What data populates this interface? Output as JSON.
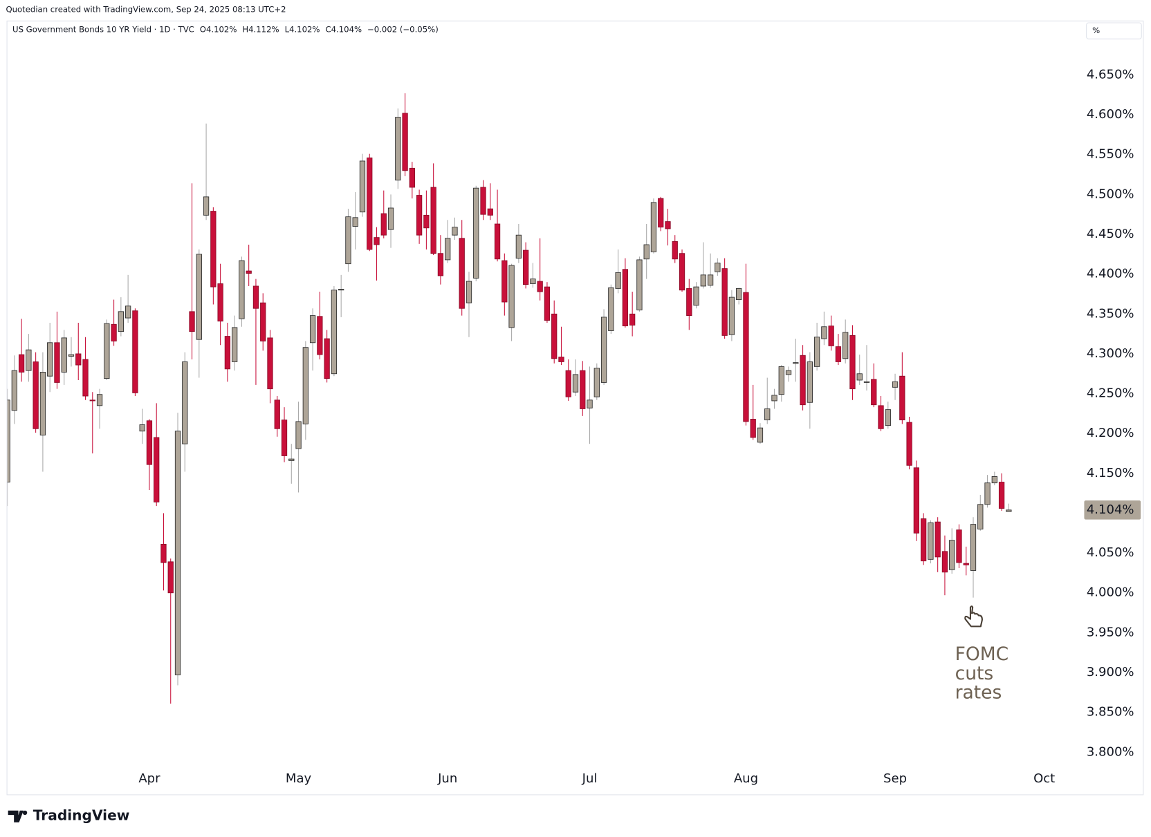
{
  "chart_data": {
    "type": "candlestick",
    "credit": "Quotedian created with TradingView.com, Sep 24, 2025 08:13 UTC+2",
    "title": "US Government Bonds 10 YR Yield · 1D · TVC",
    "header_ohlc": [
      "O4.102%",
      "H4.112%",
      "L4.102%",
      "C4.104%"
    ],
    "header_change": "−0.002 (−0.05%)",
    "unit_box": "%",
    "footer": "TradingView",
    "up_color": "#aea598",
    "down_color": "#c8103a",
    "open": [
      4.139,
      4.229,
      4.299,
      4.279,
      4.29,
      4.198,
      4.272,
      4.314,
      4.277,
      4.297,
      4.3,
      4.293,
      4.242,
      4.235,
      4.269,
      4.337,
      4.328,
      4.345,
      4.354,
      4.203,
      4.216,
      4.195,
      4.061,
      4.039,
      3.897,
      4.187,
      4.353,
      4.318,
      4.474,
      4.479,
      4.388,
      4.322,
      4.29,
      4.344,
      4.404,
      4.385,
      4.364,
      4.32,
      4.242,
      4.217,
      4.166,
      4.181,
      4.212,
      4.314,
      4.347,
      4.319,
      4.275,
      4.38,
      4.413,
      4.46,
      4.478,
      4.546,
      4.446,
      4.476,
      4.456,
      4.518,
      4.602,
      4.533,
      4.499,
      4.474,
      4.509,
      4.426,
      4.418,
      4.449,
      4.445,
      4.364,
      4.395,
      4.509,
      4.482,
      4.463,
      4.417,
      4.333,
      4.42,
      4.43,
      4.388,
      4.391,
      4.384,
      4.35,
      4.296,
      4.279,
      4.252,
      4.279,
      4.232,
      4.246,
      4.264,
      4.329,
      4.382,
      4.406,
      4.35,
      4.355,
      4.419,
      4.428,
      4.495,
      4.466,
      4.441,
      4.426,
      4.382,
      4.361,
      4.385,
      4.386,
      4.403,
      4.407,
      4.324,
      4.368,
      4.377,
      4.218,
      4.189,
      4.217,
      4.241,
      4.249,
      4.274,
      4.288,
      4.298,
      4.239,
      4.284,
      4.319,
      4.335,
      4.309,
      4.294,
      4.323,
      4.267,
      4.264,
      4.268,
      4.235,
      4.21,
      4.258,
      4.272,
      4.214,
      4.157,
      4.093,
      4.042,
      4.089,
      4.052,
      4.029,
      4.079,
      4.037,
      4.028,
      4.08,
      4.111,
      4.138,
      4.139,
      4.102
    ],
    "high": [
      4.256,
      4.298,
      4.344,
      4.325,
      4.302,
      4.302,
      4.339,
      4.353,
      4.33,
      4.321,
      4.339,
      4.321,
      4.252,
      4.256,
      4.343,
      4.368,
      4.371,
      4.399,
      4.357,
      4.231,
      4.218,
      4.238,
      4.1,
      4.043,
      4.226,
      4.302,
      4.514,
      4.431,
      4.589,
      4.484,
      4.413,
      4.339,
      4.348,
      4.422,
      4.437,
      4.394,
      4.376,
      4.33,
      4.247,
      4.233,
      4.187,
      4.24,
      4.316,
      4.357,
      4.378,
      4.33,
      4.385,
      4.399,
      4.482,
      4.503,
      4.551,
      4.551,
      4.459,
      4.505,
      4.5,
      4.608,
      4.627,
      4.541,
      4.506,
      4.505,
      4.539,
      4.449,
      4.468,
      4.471,
      4.468,
      4.403,
      4.511,
      4.518,
      4.514,
      4.506,
      4.426,
      4.413,
      4.463,
      4.44,
      4.414,
      4.445,
      4.39,
      4.367,
      4.334,
      4.293,
      4.293,
      4.291,
      4.284,
      4.288,
      4.356,
      4.387,
      4.431,
      4.42,
      4.378,
      4.422,
      4.463,
      4.495,
      4.497,
      4.482,
      4.449,
      4.431,
      4.394,
      4.39,
      4.44,
      4.426,
      4.42,
      4.42,
      4.38,
      4.383,
      4.413,
      4.261,
      4.213,
      4.27,
      4.256,
      4.286,
      4.284,
      4.319,
      4.311,
      4.302,
      4.339,
      4.353,
      4.348,
      4.325,
      4.343,
      4.336,
      4.299,
      4.311,
      4.288,
      4.247,
      4.24,
      4.275,
      4.302,
      4.221,
      4.166,
      4.1,
      4.091,
      4.095,
      4.072,
      4.081,
      4.086,
      4.058,
      4.095,
      4.123,
      4.148,
      4.152,
      4.15,
      4.112
    ],
    "low": [
      4.109,
      4.212,
      4.265,
      4.265,
      4.201,
      4.152,
      4.252,
      4.256,
      4.261,
      4.284,
      4.267,
      4.242,
      4.175,
      4.206,
      4.267,
      4.31,
      4.322,
      4.339,
      4.247,
      4.187,
      4.129,
      4.109,
      4.003,
      3.861,
      3.884,
      4.152,
      4.293,
      4.27,
      4.468,
      4.362,
      4.311,
      4.265,
      4.279,
      4.334,
      4.385,
      4.261,
      4.304,
      4.238,
      4.196,
      4.164,
      4.137,
      4.126,
      4.192,
      4.279,
      4.293,
      4.264,
      4.272,
      4.346,
      4.403,
      4.431,
      4.472,
      4.429,
      4.392,
      4.445,
      4.433,
      4.507,
      4.523,
      4.495,
      4.438,
      4.431,
      4.424,
      4.387,
      4.414,
      4.443,
      4.348,
      4.321,
      4.391,
      4.468,
      4.468,
      4.416,
      4.348,
      4.316,
      4.414,
      4.382,
      4.383,
      4.367,
      4.339,
      4.288,
      4.286,
      4.241,
      4.247,
      4.222,
      4.187,
      4.242,
      4.261,
      4.325,
      4.376,
      4.333,
      4.322,
      4.353,
      4.394,
      4.426,
      4.454,
      4.436,
      4.414,
      4.378,
      4.33,
      4.357,
      4.382,
      4.383,
      4.398,
      4.319,
      4.316,
      4.362,
      4.21,
      4.192,
      4.187,
      4.212,
      4.231,
      4.24,
      4.265,
      4.265,
      4.229,
      4.206,
      4.279,
      4.311,
      4.304,
      4.286,
      4.288,
      4.242,
      4.261,
      4.254,
      4.233,
      4.203,
      4.206,
      4.242,
      4.212,
      4.155,
      4.065,
      4.035,
      4.037,
      4.026,
      3.997,
      4.024,
      4.031,
      4.022,
      3.994,
      4.078,
      4.107,
      4.135,
      4.103,
      4.102
    ],
    "close": [
      4.242,
      4.279,
      4.277,
      4.305,
      4.206,
      4.277,
      4.314,
      4.264,
      4.32,
      4.299,
      4.286,
      4.247,
      4.241,
      4.249,
      4.338,
      4.316,
      4.353,
      4.36,
      4.251,
      4.211,
      4.161,
      4.114,
      4.038,
      4.0,
      4.203,
      4.29,
      4.328,
      4.425,
      4.497,
      4.384,
      4.341,
      4.281,
      4.333,
      4.417,
      4.401,
      4.357,
      4.316,
      4.256,
      4.206,
      4.172,
      4.168,
      4.215,
      4.308,
      4.348,
      4.299,
      4.269,
      4.38,
      4.381,
      4.472,
      4.471,
      4.542,
      4.431,
      4.437,
      4.449,
      4.483,
      4.597,
      4.53,
      4.509,
      4.449,
      4.458,
      4.426,
      4.398,
      4.445,
      4.459,
      4.357,
      4.391,
      4.508,
      4.475,
      4.474,
      4.419,
      4.365,
      4.411,
      4.449,
      4.387,
      4.394,
      4.378,
      4.342,
      4.294,
      4.29,
      4.246,
      4.274,
      4.231,
      4.242,
      4.282,
      4.346,
      4.383,
      4.402,
      4.335,
      4.336,
      4.418,
      4.437,
      4.49,
      4.459,
      4.457,
      4.419,
      4.38,
      4.348,
      4.384,
      4.399,
      4.399,
      4.414,
      4.323,
      4.371,
      4.382,
      4.215,
      4.195,
      4.207,
      4.231,
      4.248,
      4.284,
      4.279,
      4.289,
      4.236,
      4.29,
      4.321,
      4.334,
      4.31,
      4.29,
      4.327,
      4.256,
      4.275,
      4.265,
      4.236,
      4.206,
      4.23,
      4.265,
      4.217,
      4.16,
      4.075,
      4.04,
      4.088,
      4.045,
      4.026,
      4.066,
      4.038,
      4.035,
      4.086,
      4.111,
      4.138,
      4.146,
      4.106,
      4.104
    ],
    "xlim": [
      -0.1,
      150.9
    ],
    "xticks": [
      {
        "value": 20,
        "label": "Apr"
      },
      {
        "value": 41,
        "label": "May"
      },
      {
        "value": 62,
        "label": "Jun"
      },
      {
        "value": 82,
        "label": "Jul"
      },
      {
        "value": 104,
        "label": "Aug"
      },
      {
        "value": 125,
        "label": "Sep"
      },
      {
        "value": 146,
        "label": "Oct"
      }
    ],
    "ylim": [
      3.782,
      4.698
    ],
    "yticks": [
      {
        "value": 3.8,
        "label": "3.800%"
      },
      {
        "value": 3.85,
        "label": "3.850%"
      },
      {
        "value": 3.9,
        "label": "3.900%"
      },
      {
        "value": 3.95,
        "label": "3.950%"
      },
      {
        "value": 4.0,
        "label": "4.000%"
      },
      {
        "value": 4.05,
        "label": "4.050%"
      },
      {
        "value": 4.1,
        "label": "4.100%"
      },
      {
        "value": 4.15,
        "label": "4.150%"
      },
      {
        "value": 4.2,
        "label": "4.200%"
      },
      {
        "value": 4.25,
        "label": "4.250%"
      },
      {
        "value": 4.3,
        "label": "4.300%"
      },
      {
        "value": 4.35,
        "label": "4.350%"
      },
      {
        "value": 4.4,
        "label": "4.400%"
      },
      {
        "value": 4.45,
        "label": "4.450%"
      },
      {
        "value": 4.5,
        "label": "4.500%"
      },
      {
        "value": 4.55,
        "label": "4.550%"
      },
      {
        "value": 4.6,
        "label": "4.600%"
      },
      {
        "value": 4.65,
        "label": "4.650%"
      }
    ],
    "last_price": {
      "value": 4.104,
      "label": "4.104%"
    },
    "annotation": [
      "FOMC",
      "cuts",
      "rates"
    ]
  }
}
